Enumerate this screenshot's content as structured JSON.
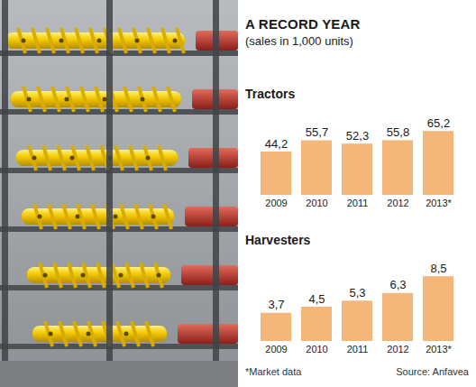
{
  "title": "A RECORD YEAR",
  "subtitle": "(sales in 1,000 units)",
  "footnote": "*Market data",
  "source": "Source: Anfavea",
  "chart_data": [
    {
      "type": "bar",
      "title": "Tractors",
      "categories": [
        "2009",
        "2010",
        "2011",
        "2012",
        "2013*"
      ],
      "values": [
        44.2,
        55.7,
        52.3,
        55.8,
        65.2
      ],
      "value_labels": [
        "44,2",
        "55,7",
        "52,3",
        "55,8",
        "65,2"
      ],
      "color": "#f5b67a",
      "ylim": [
        0,
        70
      ],
      "data_labels": true,
      "tick_labels": "x"
    },
    {
      "type": "bar",
      "title": "Harvesters",
      "categories": [
        "2009",
        "2010",
        "2011",
        "2012",
        "2013*"
      ],
      "values": [
        3.7,
        4.5,
        5.3,
        6.3,
        8.5
      ],
      "value_labels": [
        "3,7",
        "4,5",
        "5,3",
        "6,3",
        "8,5"
      ],
      "color": "#f5b67a",
      "ylim": [
        0,
        9
      ],
      "data_labels": true,
      "tick_labels": "x"
    }
  ]
}
